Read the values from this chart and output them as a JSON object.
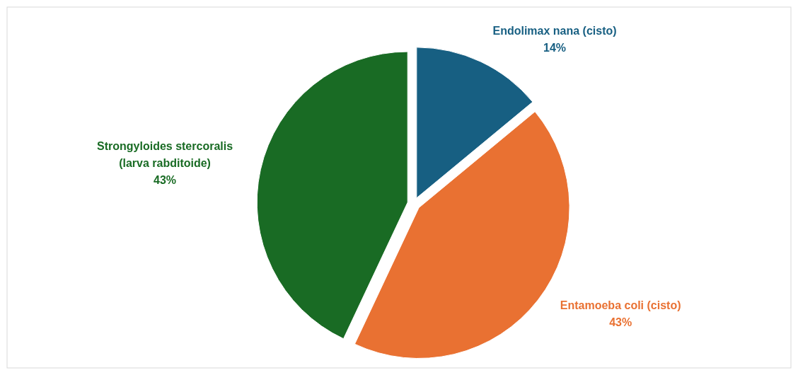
{
  "chart_data": {
    "type": "pie",
    "categories": [
      "Endolimax nana (cisto)",
      "Entamoeba coli (cisto)",
      "Strongyloides stercoralis (larva rabditoide)"
    ],
    "values": [
      14,
      43,
      43
    ],
    "colors": [
      "#175f82",
      "#e97132",
      "#196b24"
    ],
    "value_labels": [
      "14%",
      "43%",
      "43%"
    ]
  }
}
